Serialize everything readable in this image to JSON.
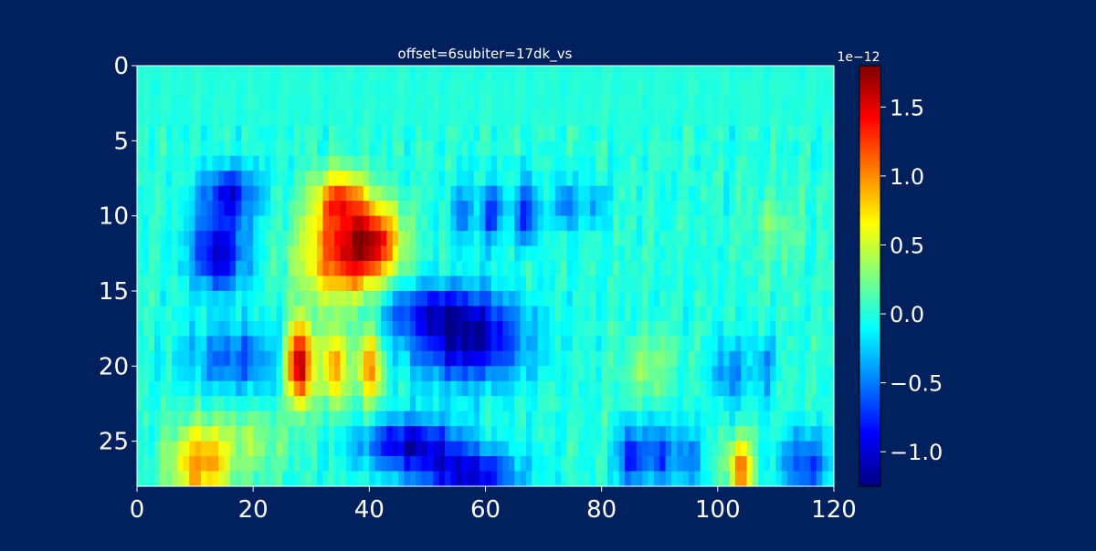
{
  "chart_data": {
    "type": "heatmap",
    "title": "offset=6subiter=17dk_vs",
    "xlabel": "",
    "ylabel": "",
    "xlim": [
      0,
      120
    ],
    "ylim": [
      0,
      28
    ],
    "y_inverted": true,
    "x_ticks": [
      "0",
      "20",
      "40",
      "60",
      "80",
      "100",
      "120"
    ],
    "x_tick_values": [
      0,
      20,
      40,
      60,
      80,
      100,
      120
    ],
    "y_ticks": [
      "0",
      "5",
      "10",
      "15",
      "20",
      "25"
    ],
    "y_tick_values": [
      0,
      5,
      10,
      15,
      20,
      25
    ],
    "colormap": "jet",
    "colorbar": {
      "min": -1.25,
      "max": 1.8,
      "ticks": [
        "1.5",
        "1.0",
        "0.5",
        "0.0",
        "−0.5",
        "−1.0"
      ],
      "tick_values": [
        1.5,
        1.0,
        0.5,
        0.0,
        -0.5,
        -1.0
      ],
      "offset_label": "1e−12"
    },
    "rows": 28,
    "cols": 120,
    "features": [
      {
        "x": 14,
        "y": 12.5,
        "sx": 3.5,
        "sy": 1.8,
        "amp": -1.0
      },
      {
        "x": 16,
        "y": 8.5,
        "sx": 3.5,
        "sy": 1.3,
        "amp": -0.85
      },
      {
        "x": 17,
        "y": 19.5,
        "sx": 6,
        "sy": 1.6,
        "amp": -0.6
      },
      {
        "x": 36,
        "y": 12.5,
        "sx": 5,
        "sy": 2.2,
        "amp": 1.4
      },
      {
        "x": 35,
        "y": 8.8,
        "sx": 3,
        "sy": 1.3,
        "amp": 1.0
      },
      {
        "x": 41,
        "y": 11.5,
        "sx": 3,
        "sy": 1.5,
        "amp": 0.9
      },
      {
        "x": 28,
        "y": 19.8,
        "sx": 1.6,
        "sy": 1.9,
        "amp": 1.8
      },
      {
        "x": 34,
        "y": 20,
        "sx": 1.5,
        "sy": 1.8,
        "amp": 1.0
      },
      {
        "x": 40,
        "y": 20,
        "sx": 1.5,
        "sy": 1.8,
        "amp": 1.0
      },
      {
        "x": 57,
        "y": 18.3,
        "sx": 7,
        "sy": 2.0,
        "amp": -1.1
      },
      {
        "x": 50,
        "y": 16.2,
        "sx": 7,
        "sy": 1.2,
        "amp": -0.6
      },
      {
        "x": 47,
        "y": 25.2,
        "sx": 6,
        "sy": 1.2,
        "amp": -1.0
      },
      {
        "x": 57,
        "y": 27.3,
        "sx": 6,
        "sy": 1.2,
        "amp": -1.0
      },
      {
        "x": 11,
        "y": 26.5,
        "sx": 3.5,
        "sy": 1.8,
        "amp": 1.0
      },
      {
        "x": 104,
        "y": 26.8,
        "sx": 1.5,
        "sy": 1.4,
        "amp": 1.1
      },
      {
        "x": 115,
        "y": 26.5,
        "sx": 3,
        "sy": 1.5,
        "amp": -0.7
      },
      {
        "x": 85,
        "y": 26,
        "sx": 1.5,
        "sy": 1.5,
        "amp": -0.9
      },
      {
        "x": 90,
        "y": 26,
        "sx": 1.5,
        "sy": 1.5,
        "amp": -0.8
      },
      {
        "x": 95,
        "y": 26,
        "sx": 1.5,
        "sy": 1.5,
        "amp": -0.6
      },
      {
        "x": 61,
        "y": 9.8,
        "sx": 1.5,
        "sy": 1.5,
        "amp": -0.7
      },
      {
        "x": 67,
        "y": 9.8,
        "sx": 1.5,
        "sy": 1.5,
        "amp": -0.8
      },
      {
        "x": 74,
        "y": 9.2,
        "sx": 1.3,
        "sy": 1.2,
        "amp": -0.6
      },
      {
        "x": 79,
        "y": 9.2,
        "sx": 1.3,
        "sy": 1.2,
        "amp": -0.4
      },
      {
        "x": 56,
        "y": 9.8,
        "sx": 1.3,
        "sy": 1.5,
        "amp": -0.5
      },
      {
        "x": 102,
        "y": 20.5,
        "sx": 2,
        "sy": 1.5,
        "amp": -0.5
      },
      {
        "x": 108,
        "y": 20,
        "sx": 1.5,
        "sy": 1.5,
        "amp": -0.4
      },
      {
        "x": 88,
        "y": 20,
        "sx": 3,
        "sy": 1.5,
        "amp": 0.3
      },
      {
        "x": 110,
        "y": 11,
        "sx": 3,
        "sy": 2,
        "amp": 0.2
      },
      {
        "x": 20,
        "y": 25,
        "sx": 4,
        "sy": 1.5,
        "amp": 0.3
      }
    ]
  }
}
